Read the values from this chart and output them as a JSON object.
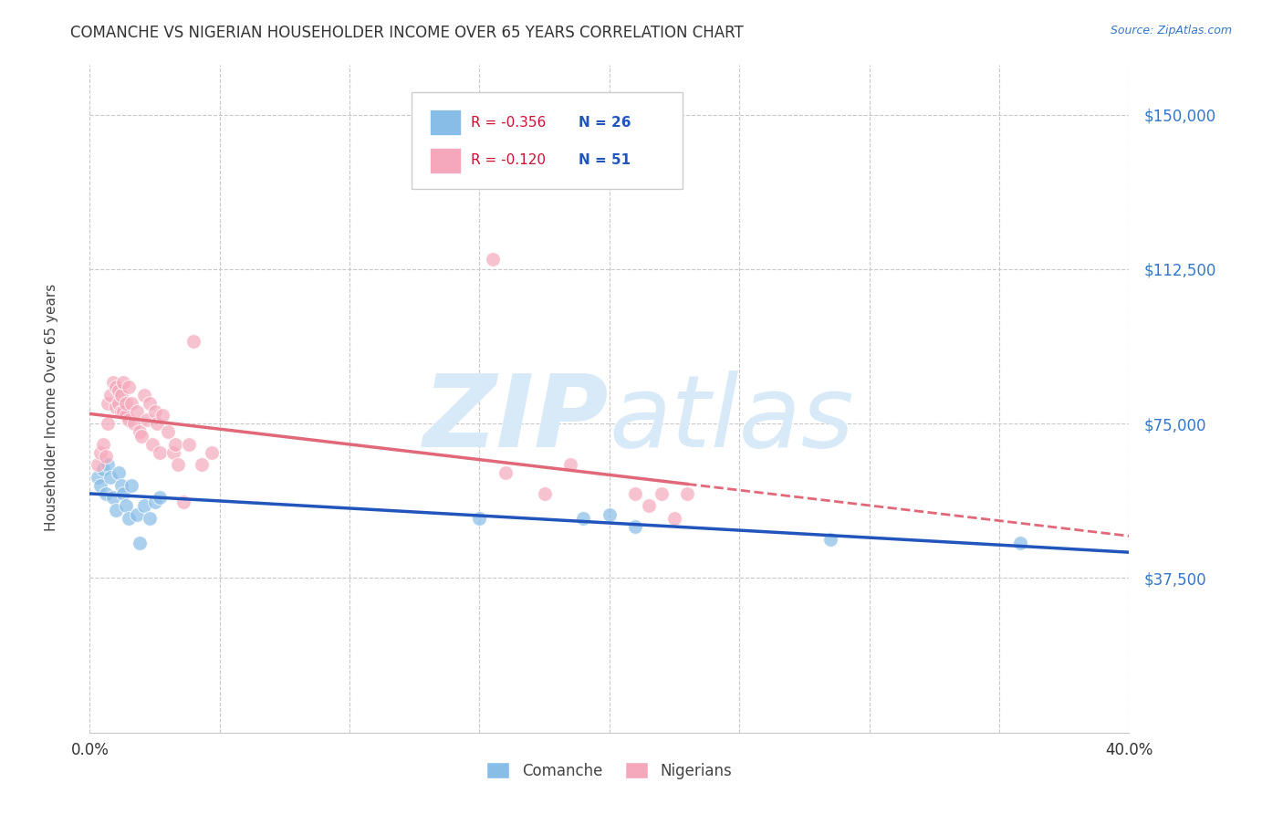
{
  "title": "COMANCHE VS NIGERIAN HOUSEHOLDER INCOME OVER 65 YEARS CORRELATION CHART",
  "source": "Source: ZipAtlas.com",
  "ylabel": "Householder Income Over 65 years",
  "xlim": [
    0.0,
    0.4
  ],
  "ylim": [
    0,
    162000
  ],
  "xticks": [
    0.0,
    0.05,
    0.1,
    0.15,
    0.2,
    0.25,
    0.3,
    0.35,
    0.4
  ],
  "ytick_positions": [
    0,
    37500,
    75000,
    112500,
    150000
  ],
  "ytick_labels": [
    "",
    "$37,500",
    "$75,000",
    "$112,500",
    "$150,000"
  ],
  "comanche_R": -0.356,
  "comanche_N": 26,
  "nigerian_R": -0.12,
  "nigerian_N": 51,
  "comanche_color": "#88bde8",
  "nigerian_color": "#f5a8bb",
  "comanche_line_color": "#2255bb",
  "nigerian_line_color": "#e06878",
  "background_color": "#ffffff",
  "grid_color": "#c8c8c8",
  "watermark_color": "#d8eaf8",
  "comanche_x": [
    0.003,
    0.004,
    0.005,
    0.006,
    0.007,
    0.008,
    0.009,
    0.01,
    0.011,
    0.012,
    0.013,
    0.014,
    0.015,
    0.016,
    0.018,
    0.019,
    0.021,
    0.023,
    0.025,
    0.027,
    0.15,
    0.19,
    0.2,
    0.21,
    0.285,
    0.358
  ],
  "comanche_y": [
    62000,
    60000,
    64000,
    58000,
    65000,
    62000,
    57000,
    54000,
    63000,
    60000,
    58000,
    55000,
    52000,
    60000,
    53000,
    46000,
    55000,
    52000,
    56000,
    57000,
    52000,
    52000,
    53000,
    50000,
    47000,
    46000
  ],
  "nigerian_x": [
    0.003,
    0.004,
    0.005,
    0.006,
    0.007,
    0.007,
    0.008,
    0.009,
    0.01,
    0.01,
    0.011,
    0.011,
    0.012,
    0.012,
    0.013,
    0.013,
    0.014,
    0.014,
    0.015,
    0.015,
    0.016,
    0.017,
    0.018,
    0.019,
    0.02,
    0.021,
    0.022,
    0.023,
    0.024,
    0.025,
    0.026,
    0.027,
    0.028,
    0.03,
    0.032,
    0.033,
    0.034,
    0.036,
    0.038,
    0.04,
    0.043,
    0.047,
    0.155,
    0.16,
    0.175,
    0.185,
    0.21,
    0.215,
    0.22,
    0.225,
    0.23
  ],
  "nigerian_y": [
    65000,
    68000,
    70000,
    67000,
    80000,
    75000,
    82000,
    85000,
    79000,
    84000,
    80000,
    83000,
    78000,
    82000,
    78000,
    85000,
    77000,
    80000,
    84000,
    76000,
    80000,
    75000,
    78000,
    73000,
    72000,
    82000,
    76000,
    80000,
    70000,
    78000,
    75000,
    68000,
    77000,
    73000,
    68000,
    70000,
    65000,
    56000,
    70000,
    95000,
    65000,
    68000,
    115000,
    63000,
    58000,
    65000,
    58000,
    55000,
    58000,
    52000,
    58000
  ]
}
